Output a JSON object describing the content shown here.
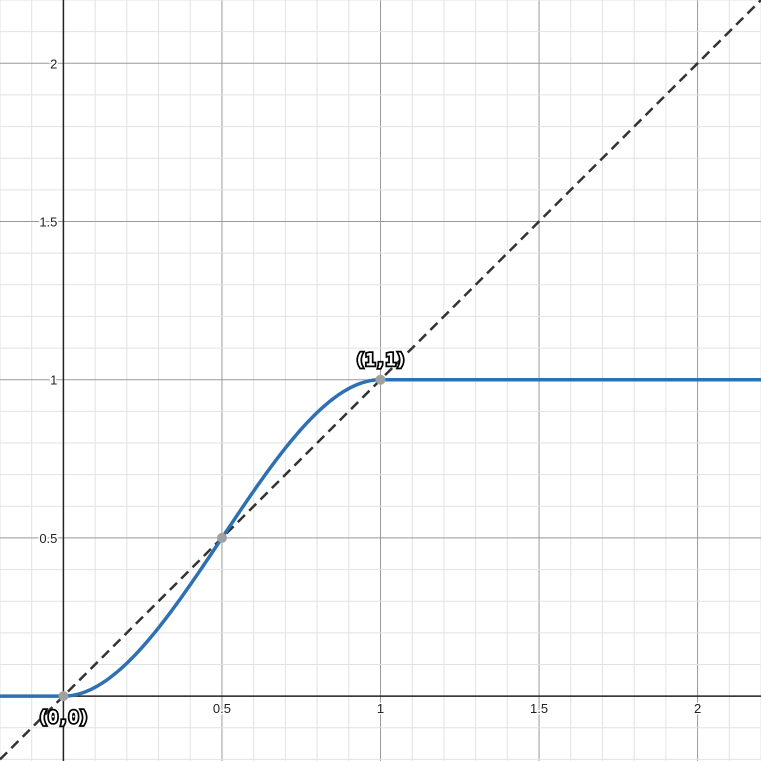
{
  "chart_data": {
    "type": "line",
    "xlim": [
      -0.2,
      2.2
    ],
    "ylim": [
      -0.205,
      2.2
    ],
    "grid": true,
    "minor_grid_step": 0.1,
    "major_grid_step": 0.5,
    "x_ticks": [
      0.5,
      1,
      1.5,
      2
    ],
    "x_tick_labels": [
      "0.5",
      "1",
      "1.5",
      "2"
    ],
    "y_ticks": [
      0.5,
      1,
      1.5,
      2
    ],
    "y_tick_labels": [
      "0.5",
      "1",
      "1.5",
      "2"
    ],
    "series": [
      {
        "style": "solid",
        "color": "#2d70b3",
        "function": "clamped smoothstep: 0 for x<0, 3x^2-2x^3 for 0<=x<=1, 1 for x>1"
      },
      {
        "style": "dashed",
        "color": "#333333",
        "function": "y = x"
      }
    ],
    "points": [
      {
        "x": 0,
        "y": 0,
        "label": "(0,0)"
      },
      {
        "x": 0.5,
        "y": 0.5,
        "label": ""
      },
      {
        "x": 1,
        "y": 1,
        "label": "(1,1)"
      }
    ],
    "point_color": "#a0a0a0"
  }
}
